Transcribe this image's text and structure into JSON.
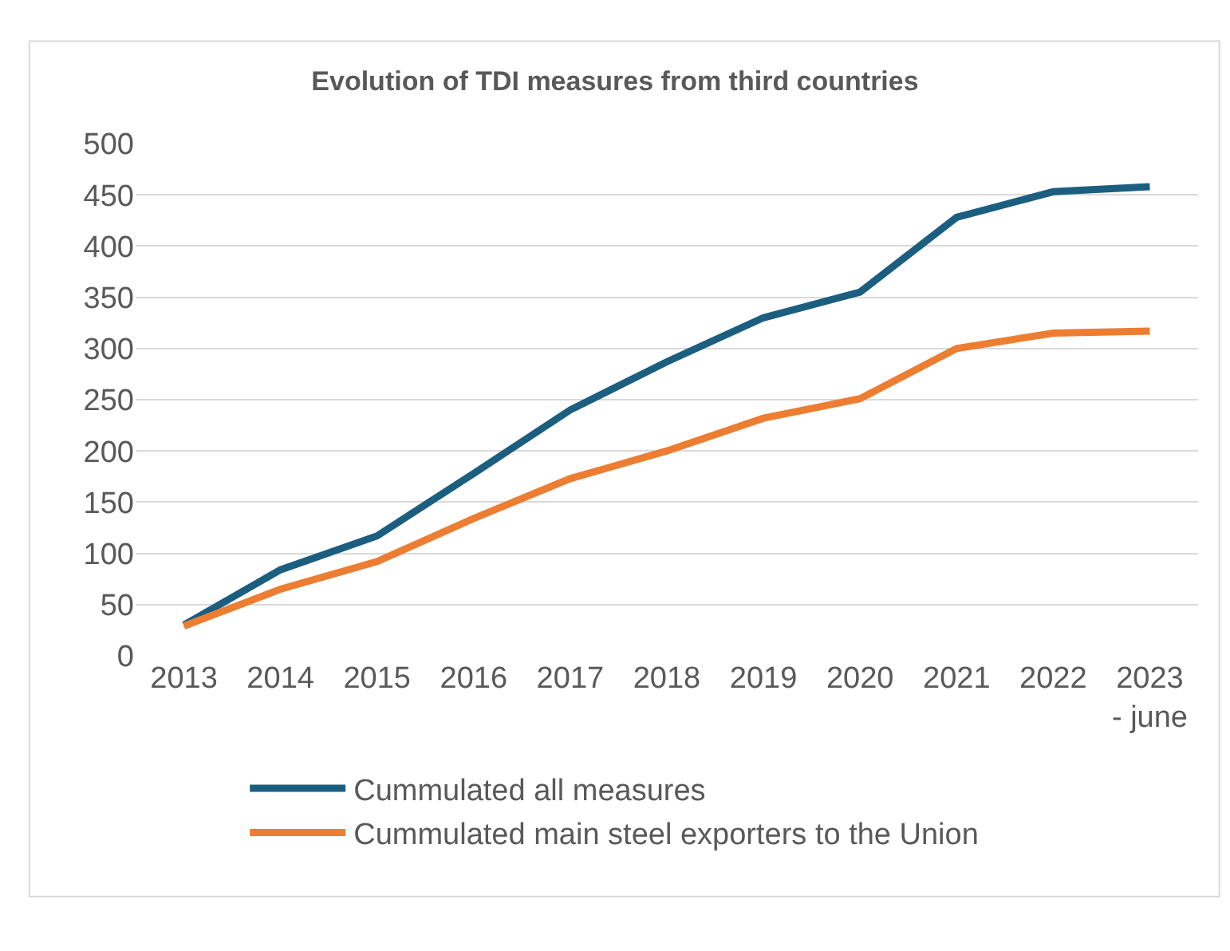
{
  "chart_data": {
    "type": "line",
    "title": "Evolution of TDI measures from third countries",
    "categories": [
      "2013",
      "2014",
      "2015",
      "2016",
      "2017",
      "2018",
      "2019",
      "2020",
      "2021",
      "2022",
      "2023 - june"
    ],
    "series": [
      {
        "name": "Cummulated all measures",
        "color": "#1b5e80",
        "values": [
          30,
          84,
          117,
          178,
          240,
          287,
          330,
          355,
          428,
          453,
          458
        ]
      },
      {
        "name": "Cummulated main steel exporters to the Union",
        "color": "#ed7d31",
        "values": [
          29,
          65,
          92,
          134,
          173,
          200,
          232,
          251,
          300,
          315,
          317
        ]
      }
    ],
    "ylim": [
      0,
      500
    ],
    "yticks": [
      0,
      50,
      100,
      150,
      200,
      250,
      300,
      350,
      400,
      450,
      500
    ],
    "grid": "y",
    "legend": "bottom",
    "marker": "none",
    "line_style": "solid"
  }
}
